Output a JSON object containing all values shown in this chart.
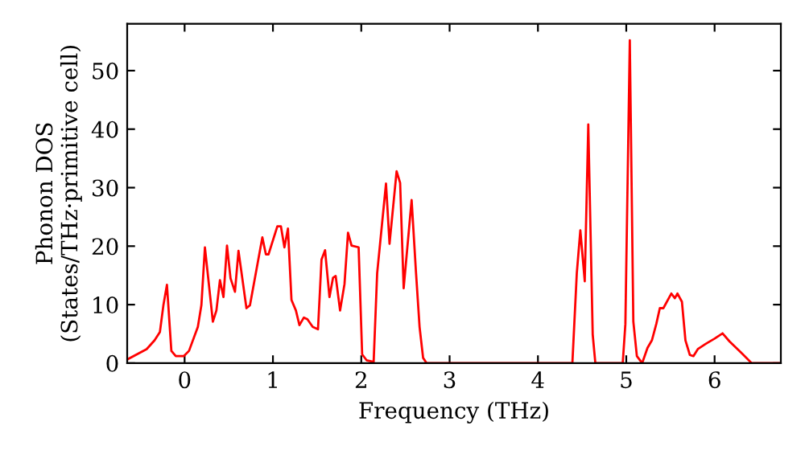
{
  "chart_data": {
    "type": "line",
    "xlabel": "Frequency (THz)",
    "ylabel": "Phonon DOS\n(States/THz·primitive cell)",
    "xlim": [
      -0.65,
      6.75
    ],
    "ylim": [
      0,
      58
    ],
    "xticks": [
      0,
      1,
      2,
      3,
      4,
      5,
      6
    ],
    "yticks": [
      0,
      10,
      20,
      30,
      40,
      50
    ],
    "grid": false,
    "legend": false,
    "series": [
      {
        "color": "#ff0000",
        "x": [
          -0.64,
          -0.43,
          -0.34,
          -0.28,
          -0.24,
          -0.2,
          -0.15,
          -0.1,
          -0.01,
          0.05,
          0.15,
          0.19,
          0.23,
          0.32,
          0.36,
          0.4,
          0.44,
          0.48,
          0.52,
          0.57,
          0.61,
          0.7,
          0.74,
          0.88,
          0.92,
          0.95,
          1.05,
          1.09,
          1.13,
          1.17,
          1.21,
          1.26,
          1.3,
          1.35,
          1.39,
          1.45,
          1.51,
          1.55,
          1.59,
          1.64,
          1.68,
          1.71,
          1.76,
          1.81,
          1.85,
          1.89,
          1.97,
          2.01,
          2.06,
          2.14,
          2.18,
          2.28,
          2.32,
          2.4,
          2.44,
          2.48,
          2.57,
          2.62,
          2.66,
          2.7,
          2.74,
          4.39,
          4.44,
          4.48,
          4.53,
          4.57,
          4.62,
          4.65,
          4.96,
          4.99,
          5.04,
          5.08,
          5.12,
          5.18,
          5.24,
          5.29,
          5.34,
          5.38,
          5.42,
          5.51,
          5.55,
          5.58,
          5.63,
          5.67,
          5.72,
          5.76,
          5.81,
          5.9,
          6.0,
          6.09,
          6.17,
          6.3,
          6.42,
          6.75
        ],
        "values": [
          0.7,
          2.4,
          3.9,
          5.3,
          9.9,
          13.4,
          2.1,
          1.2,
          1.2,
          2.1,
          6.2,
          9.9,
          19.8,
          7.1,
          9.0,
          14.2,
          11.3,
          20.1,
          14.5,
          12.2,
          19.2,
          9.4,
          9.9,
          21.5,
          18.6,
          18.6,
          23.4,
          23.4,
          19.8,
          23.0,
          10.8,
          9.0,
          6.5,
          7.8,
          7.5,
          6.2,
          5.8,
          17.7,
          19.3,
          11.3,
          14.6,
          14.9,
          9.0,
          13.5,
          22.3,
          20.1,
          19.8,
          1.5,
          0.5,
          0.2,
          15.4,
          30.7,
          20.4,
          32.8,
          30.8,
          12.8,
          27.9,
          15.4,
          6.2,
          0.9,
          0,
          0,
          15.4,
          22.7,
          14.0,
          40.8,
          4.9,
          0,
          0,
          6.7,
          55.2,
          7.1,
          1.2,
          0,
          2.6,
          3.9,
          6.7,
          9.4,
          9.4,
          11.9,
          11.1,
          11.9,
          10.5,
          3.9,
          1.4,
          1.2,
          2.4,
          3.3,
          4.2,
          5.1,
          3.7,
          1.8,
          0,
          0
        ]
      }
    ]
  }
}
